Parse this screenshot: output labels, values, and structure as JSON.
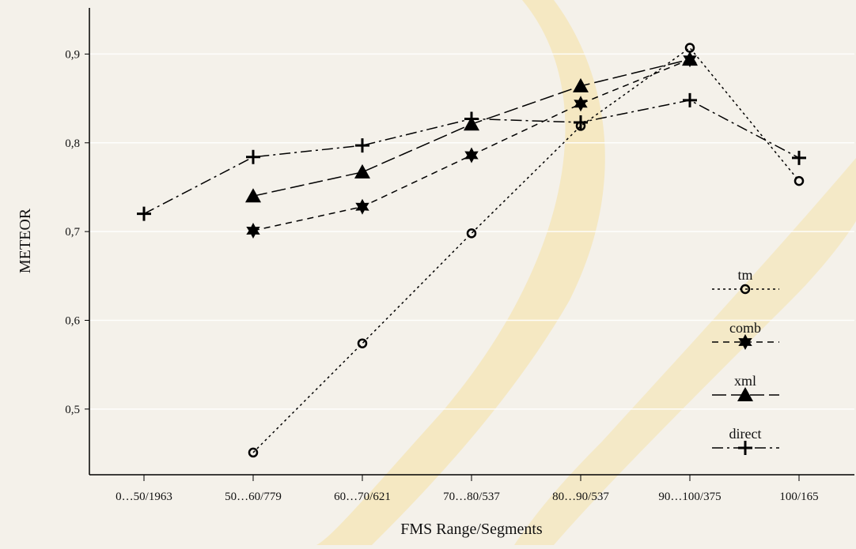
{
  "chart_data": {
    "type": "line",
    "x_label": "FMS Range/Segments",
    "y_label": "METEOR",
    "categories": [
      "0…50/1963",
      "50…60/779",
      "60…70/621",
      "70…80/537",
      "80…90/537",
      "90…100/375",
      "100/165"
    ],
    "series": [
      {
        "name": "tm",
        "color": "#000000",
        "values": [
          null,
          0.451,
          0.574,
          0.698,
          0.819,
          0.907,
          0.757
        ]
      },
      {
        "name": "comb",
        "color": "#000000",
        "values": [
          null,
          0.701,
          0.728,
          0.786,
          0.844,
          0.894,
          null
        ]
      },
      {
        "name": "xml",
        "color": "#000000",
        "values": [
          null,
          0.74,
          0.767,
          0.821,
          0.864,
          0.894,
          null
        ]
      },
      {
        "name": "direct",
        "color": "#000000",
        "values": [
          0.72,
          0.784,
          0.797,
          0.827,
          0.823,
          0.848,
          0.783
        ]
      }
    ],
    "ylim": [
      0.426,
      0.952
    ],
    "yticks": [
      {
        "value": 0.5,
        "label": "0,5"
      },
      {
        "value": 0.6,
        "label": "0,6"
      },
      {
        "value": 0.7,
        "label": "0,7"
      },
      {
        "value": 0.8,
        "label": "0,8"
      },
      {
        "value": 0.9,
        "label": "0,9"
      }
    ],
    "grid": true
  }
}
